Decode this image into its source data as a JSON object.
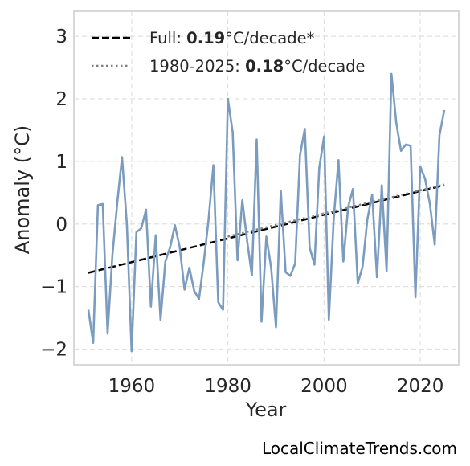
{
  "chart_data": {
    "type": "line",
    "xlabel": "Year",
    "ylabel": "Anomaly (°C)",
    "xlim": [
      1948,
      2028
    ],
    "ylim": [
      -2.25,
      3.4
    ],
    "xticks": [
      1960,
      1980,
      2000,
      2020
    ],
    "yticks": [
      -2,
      -1,
      0,
      1,
      2,
      3
    ],
    "ytick_labels": [
      "−2",
      "−1",
      "0",
      "1",
      "2",
      "3"
    ],
    "grid": true,
    "legend_position": "top-left",
    "series": [
      {
        "x": [
          1951,
          1952,
          1953,
          1954,
          1955,
          1956,
          1957,
          1958,
          1959,
          1960,
          1961,
          1962,
          1963,
          1964,
          1965,
          1966,
          1967,
          1968,
          1969,
          1970,
          1971,
          1972,
          1973,
          1974,
          1975,
          1976,
          1977,
          1978,
          1979,
          1980,
          1981,
          1982,
          1983,
          1984,
          1985,
          1986,
          1987,
          1988,
          1989,
          1990,
          1991,
          1992,
          1993,
          1994,
          1995,
          1996,
          1997,
          1998,
          1999,
          2000,
          2001,
          2002,
          2003,
          2004,
          2005,
          2006,
          2007,
          2008,
          2009,
          2010,
          2011,
          2012,
          2013,
          2014,
          2015,
          2016,
          2017,
          2018,
          2019,
          2020,
          2021,
          2022,
          2023,
          2024,
          2025
        ],
        "values": [
          -1.37,
          -1.9,
          0.3,
          0.32,
          -1.75,
          -0.5,
          0.33,
          1.07,
          0.0,
          -2.03,
          -0.13,
          -0.07,
          0.23,
          -1.32,
          -0.18,
          -1.53,
          -0.6,
          -0.37,
          -0.02,
          -0.37,
          -1.05,
          -0.7,
          -1.07,
          -1.2,
          -0.6,
          0.07,
          0.94,
          -1.25,
          -1.37,
          2.0,
          1.47,
          -0.58,
          0.38,
          -0.27,
          -0.82,
          1.35,
          -1.56,
          -0.2,
          -0.7,
          -1.65,
          0.53,
          -0.77,
          -0.83,
          -0.63,
          1.1,
          1.52,
          -0.38,
          -0.65,
          0.9,
          1.4,
          -1.53,
          0.07,
          1.02,
          -0.6,
          0.27,
          0.56,
          -0.95,
          -0.68,
          0.07,
          0.47,
          -0.85,
          0.62,
          -0.75,
          2.4,
          1.62,
          1.17,
          1.27,
          1.25,
          -1.17,
          0.92,
          0.72,
          0.32,
          -0.33,
          1.42,
          1.82
        ],
        "color": "#7b9cbf"
      }
    ],
    "trend_lines": [
      {
        "name": "Full",
        "rate": "0.19",
        "unit": "°C/decade*",
        "x": [
          1951,
          2025
        ],
        "values": [
          -0.78,
          0.62
        ],
        "style": "dashed",
        "color": "#000000"
      },
      {
        "name": "1980-2025",
        "rate": "0.18",
        "unit": "°C/decade",
        "x": [
          1980,
          2025
        ],
        "values": [
          -0.2,
          0.63
        ],
        "style": "dotted",
        "color": "#7f7f7f"
      }
    ]
  },
  "credit": "LocalClimateTrends.com"
}
